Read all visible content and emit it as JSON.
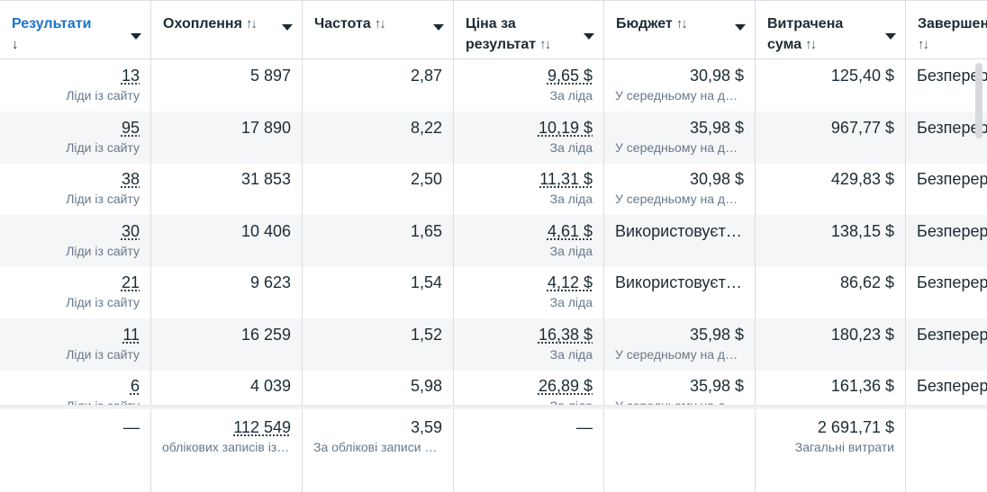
{
  "columns": [
    {
      "label": "Результати",
      "sort_icon": "↓",
      "active": true
    },
    {
      "label": "Охоплення",
      "sort_icon": "↑↓"
    },
    {
      "label": "Частота",
      "sort_icon": "↑↓"
    },
    {
      "label": "Ціна за результат",
      "sort_icon": "↑↓"
    },
    {
      "label": "Бюджет",
      "sort_icon": "↑↓"
    },
    {
      "label": "Витрачена сума",
      "sort_icon": "↑↓"
    },
    {
      "label": "Завершення",
      "sort_icon": "↑↓"
    }
  ],
  "rows": [
    {
      "results": "13",
      "results_sub": "Ліди із сайту",
      "reach": "5 897",
      "frequency": "2,87",
      "cost": "9,65 $",
      "cost_sub": "За ліда",
      "budget": "30,98 $",
      "budget_sub": "У середньому на де…",
      "spent": "125,40 $",
      "end": "Безперервно"
    },
    {
      "results": "95",
      "results_sub": "Ліди із сайту",
      "reach": "17 890",
      "frequency": "8,22",
      "cost": "10,19 $",
      "cost_sub": "За ліда",
      "budget": "35,98 $",
      "budget_sub": "У середньому на де…",
      "spent": "967,77 $",
      "end": "Безперервно"
    },
    {
      "results": "38",
      "results_sub": "Ліди із сайту",
      "reach": "31 853",
      "frequency": "2,50",
      "cost": "11,31 $",
      "cost_sub": "За ліда",
      "budget": "30,98 $",
      "budget_sub": "У середньому на де…",
      "spent": "429,83 $",
      "end": "Безперервно"
    },
    {
      "results": "30",
      "results_sub": "Ліди із сайту",
      "reach": "10 406",
      "frequency": "1,65",
      "cost": "4,61 $",
      "cost_sub": "За ліда",
      "budget": "Використовуєть…",
      "budget_sub": "",
      "spent": "138,15 $",
      "end": "Безперервно"
    },
    {
      "results": "21",
      "results_sub": "Ліди із сайту",
      "reach": "9 623",
      "frequency": "1,54",
      "cost": "4,12 $",
      "cost_sub": "За ліда",
      "budget": "Використовуєть…",
      "budget_sub": "",
      "spent": "86,62 $",
      "end": "Безперервно"
    },
    {
      "results": "11",
      "results_sub": "Ліди із сайту",
      "reach": "16 259",
      "frequency": "1,52",
      "cost": "16,38 $",
      "cost_sub": "За ліда",
      "budget": "35,98 $",
      "budget_sub": "У середньому на де…",
      "spent": "180,23 $",
      "end": "Безперервно"
    },
    {
      "results": "6",
      "results_sub": "Ліди із сайту",
      "reach": "4 039",
      "frequency": "5,98",
      "cost": "26,89 $",
      "cost_sub": "За ліда",
      "budget": "35,98 $",
      "budget_sub": "У середньому на де…",
      "spent": "161,36 $",
      "end": "Безперервно"
    }
  ],
  "totals": {
    "results": "—",
    "reach": "112 549",
    "reach_sub": "облікових записів із…",
    "frequency": "3,59",
    "frequency_sub": "За облікові записи з…",
    "cost": "—",
    "spent": "2 691,71 $",
    "spent_sub": "Загальні витрати"
  }
}
